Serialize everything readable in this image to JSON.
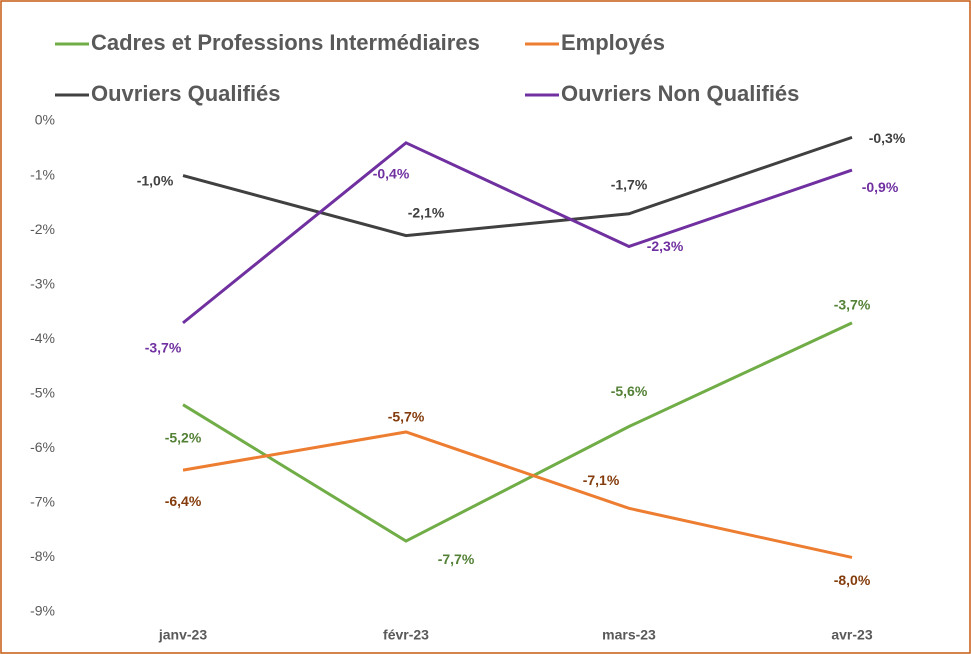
{
  "chart_data": {
    "type": "line",
    "categories": [
      "janv-23",
      "févr-23",
      "mars-23",
      "avr-23"
    ],
    "series": [
      {
        "name": "Cadres et Professions Intermédiaires",
        "color": "#70ad47",
        "label_color": "#538135",
        "values": [
          -5.2,
          -7.7,
          -5.6,
          -3.7
        ],
        "value_labels": [
          "-5,2%",
          "-7,7%",
          "-5,6%",
          "-3,7%"
        ]
      },
      {
        "name": "Employés",
        "color": "#ed7d31",
        "label_color": "#843c0c",
        "values": [
          -6.4,
          -5.7,
          -7.1,
          -8.0
        ],
        "value_labels": [
          "-6,4%",
          "-5,7%",
          "-7,1%",
          "-8,0%"
        ]
      },
      {
        "name": "Ouvriers Qualifiés",
        "color": "#404040",
        "label_color": "#404040",
        "values": [
          -1.0,
          -2.1,
          -1.7,
          -0.3
        ],
        "value_labels": [
          "-1,0%",
          "-2,1%",
          "-1,7%",
          "-0,3%"
        ]
      },
      {
        "name": "Ouvriers Non Qualifiés",
        "color": "#7030a0",
        "label_color": "#7030a0",
        "values": [
          -3.7,
          -0.4,
          -2.3,
          -0.9
        ],
        "value_labels": [
          "-3,7%",
          "-0,4%",
          "-2,3%",
          "-0,9%"
        ]
      }
    ],
    "ylim": [
      -9,
      0
    ],
    "yticks": [
      {
        "value": 0,
        "label": "0%"
      },
      {
        "value": -1,
        "label": "-1%"
      },
      {
        "value": -2,
        "label": "-2%"
      },
      {
        "value": -3,
        "label": "-3%"
      },
      {
        "value": -4,
        "label": "-4%"
      },
      {
        "value": -5,
        "label": "-5%"
      },
      {
        "value": -6,
        "label": "-6%"
      },
      {
        "value": -7,
        "label": "-7%"
      },
      {
        "value": -8,
        "label": "-8%"
      },
      {
        "value": -9,
        "label": "-9%"
      }
    ],
    "grid": false,
    "legend": "top"
  }
}
